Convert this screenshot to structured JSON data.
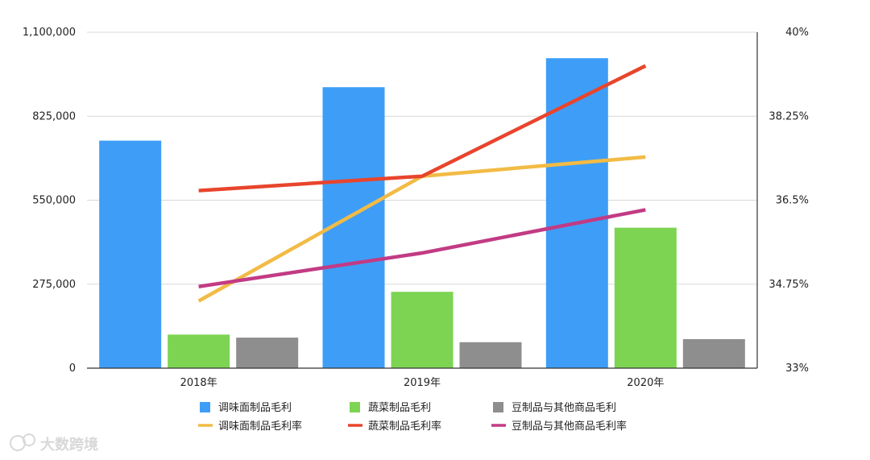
{
  "chart_data": {
    "type": "bar",
    "categories": [
      "2018年",
      "2019年",
      "2020年"
    ],
    "y_left": {
      "lim": [
        0,
        1100000
      ],
      "ticks": [
        0,
        275000,
        550000,
        825000,
        1100000
      ],
      "tick_labels": [
        "0",
        "275,000",
        "550,000",
        "825,000",
        "1,100,000"
      ]
    },
    "y_right": {
      "lim": [
        33,
        40
      ],
      "ticks": [
        33,
        34.75,
        36.5,
        38.25,
        40
      ],
      "tick_labels": [
        "33%",
        "34.75%",
        "36.5%",
        "38.25%",
        "40%"
      ]
    },
    "bar_series": [
      {
        "name": "调味面制品毛利",
        "color": "#3e9ef7",
        "values": [
          745000,
          920000,
          1015000
        ]
      },
      {
        "name": "蔬菜制品毛利",
        "color": "#7dd452",
        "values": [
          110000,
          250000,
          460000
        ]
      },
      {
        "name": "豆制品与其他商品毛利",
        "color": "#8e8e8e",
        "values": [
          100000,
          85000,
          95000
        ]
      }
    ],
    "line_series": [
      {
        "name": "调味面制品毛利率",
        "color": "#f2bb45",
        "values": [
          34.4,
          37.0,
          37.4
        ]
      },
      {
        "name": "蔬菜制品毛利率",
        "color": "#e8452d",
        "values": [
          36.7,
          37.0,
          39.3
        ]
      },
      {
        "name": "豆制品与其他商品毛利率",
        "color": "#c23b84",
        "values": [
          34.7,
          35.4,
          36.3
        ]
      }
    ],
    "grid": true,
    "legend_position": "bottom"
  },
  "watermark": {
    "text": "大数跨境"
  }
}
